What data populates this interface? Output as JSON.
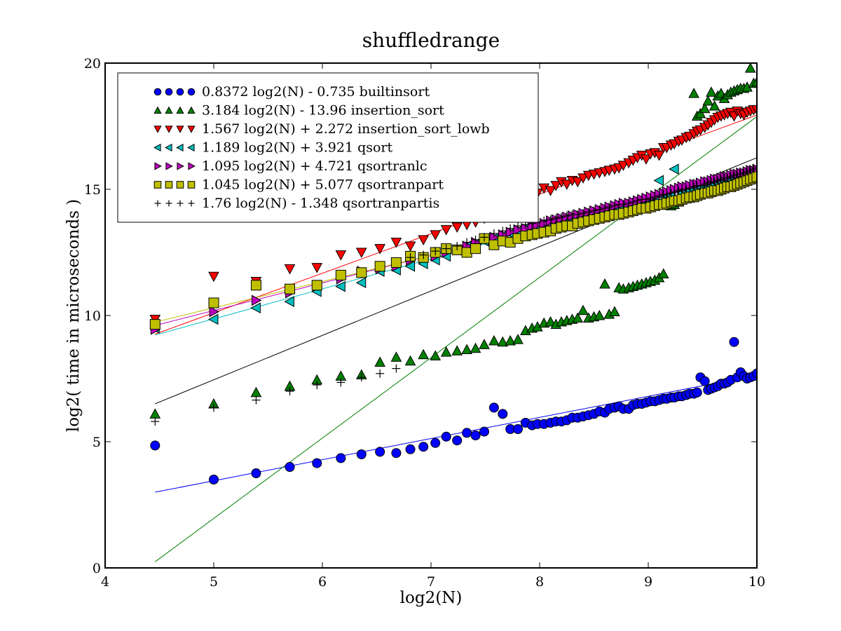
{
  "chart_data": {
    "type": "scatter",
    "title": "shuffledrange",
    "xlabel": "log2(N)",
    "ylabel": "log2( time in microseconds )",
    "xlim": [
      4,
      10
    ],
    "ylim": [
      0,
      20
    ],
    "xticks": [
      "4",
      "5",
      "6",
      "7",
      "8",
      "9",
      "10"
    ],
    "yticks": [
      "0",
      "5",
      "10",
      "15",
      "20"
    ],
    "grid": false,
    "legend_position": "top-left",
    "series": [
      {
        "name": "0.8372 log2(N) - 0.735 builtinsort",
        "marker": "circle",
        "color": "#0000ff",
        "fit": {
          "slope": 0.8372,
          "intercept": -0.735,
          "x_range": [
            4.46,
            10.0
          ]
        },
        "x": [
          4.46,
          5.0,
          5.39,
          5.7,
          5.95,
          6.17,
          6.36,
          6.53,
          6.68,
          6.81,
          6.93,
          7.04,
          7.14,
          7.24,
          7.33,
          7.41,
          7.49,
          7.58,
          7.66,
          7.73,
          7.8,
          7.87,
          7.93,
          7.98,
          8.04,
          8.1,
          8.15,
          8.2,
          8.25,
          8.3,
          8.35,
          8.4,
          8.45,
          8.5,
          8.55,
          8.6,
          8.64,
          8.69,
          8.73,
          8.77,
          8.82,
          8.86,
          8.9,
          8.94,
          8.98,
          9.02,
          9.06,
          9.1,
          9.14,
          9.17,
          9.21,
          9.24,
          9.28,
          9.31,
          9.35,
          9.38,
          9.42,
          9.45,
          9.48,
          9.52,
          9.55,
          9.58,
          9.61,
          9.64,
          9.67,
          9.7,
          9.73,
          9.76,
          9.79,
          9.82,
          9.85,
          9.88,
          9.91,
          9.94,
          9.97,
          10.0
        ],
        "y": [
          4.85,
          3.5,
          3.75,
          4.0,
          4.15,
          4.35,
          4.5,
          4.6,
          4.55,
          4.7,
          4.8,
          4.95,
          5.2,
          5.05,
          5.35,
          5.25,
          5.4,
          6.35,
          6.1,
          5.5,
          5.5,
          5.75,
          5.65,
          5.7,
          5.7,
          5.75,
          5.8,
          5.8,
          5.85,
          5.95,
          5.95,
          6.0,
          6.05,
          6.1,
          6.2,
          6.15,
          6.3,
          6.35,
          6.4,
          6.3,
          6.3,
          6.45,
          6.5,
          6.5,
          6.55,
          6.6,
          6.6,
          6.65,
          6.7,
          6.7,
          6.75,
          6.75,
          6.8,
          6.8,
          6.85,
          6.9,
          6.9,
          6.95,
          7.55,
          7.4,
          7.05,
          7.1,
          7.15,
          7.2,
          7.3,
          7.3,
          7.35,
          7.45,
          8.95,
          7.55,
          7.75,
          7.6,
          7.5,
          7.55,
          7.6,
          7.7
        ]
      },
      {
        "name": "3.184 log2(N) - 13.96 insertion_sort",
        "marker": "triangle-up",
        "color": "#008000",
        "fit": {
          "slope": 3.184,
          "intercept": -13.96,
          "x_range": [
            4.46,
            10.0
          ]
        },
        "x": [
          4.46,
          5.0,
          5.39,
          5.7,
          5.95,
          6.17,
          6.36,
          6.53,
          6.68,
          6.81,
          6.93,
          7.04,
          7.14,
          7.24,
          7.33,
          7.41,
          7.49,
          7.58,
          7.66,
          7.73,
          7.8,
          7.87,
          7.93,
          7.98,
          8.04,
          8.1,
          8.15,
          8.2,
          8.25,
          8.3,
          8.35,
          8.4,
          8.45,
          8.5,
          8.55,
          8.6,
          8.64,
          8.69,
          8.73,
          8.77,
          8.82,
          8.86,
          8.9,
          8.94,
          8.98,
          9.02,
          9.06,
          9.1,
          9.14,
          9.17,
          9.21,
          9.24,
          9.28,
          9.31,
          9.35,
          9.38,
          9.42,
          9.45,
          9.48,
          9.52,
          9.55,
          9.58,
          9.61,
          9.64,
          9.67,
          9.7,
          9.73,
          9.76,
          9.79,
          9.82,
          9.85,
          9.88,
          9.91,
          9.94,
          9.97,
          10.0
        ],
        "y": [
          6.1,
          6.5,
          6.95,
          7.2,
          7.45,
          7.6,
          7.65,
          8.15,
          8.35,
          8.2,
          8.45,
          8.4,
          8.55,
          8.6,
          8.65,
          8.7,
          8.85,
          9.0,
          8.95,
          9.0,
          9.05,
          9.4,
          9.5,
          9.55,
          9.7,
          9.75,
          9.65,
          9.75,
          9.8,
          9.85,
          9.9,
          10.2,
          9.9,
          9.95,
          10.0,
          11.25,
          10.05,
          10.15,
          11.1,
          11.05,
          11.1,
          11.15,
          11.2,
          11.25,
          11.3,
          11.35,
          11.4,
          11.5,
          11.65,
          14.5,
          14.35,
          14.4,
          14.5,
          14.6,
          14.7,
          14.65,
          18.8,
          17.9,
          18.0,
          18.2,
          18.5,
          18.85,
          18.3,
          18.7,
          18.8,
          18.6,
          18.75,
          18.85,
          18.9,
          18.95,
          19.0,
          19.0,
          19.05,
          19.8,
          19.2,
          19.25
        ]
      },
      {
        "name": "1.567 log2(N) + 2.272 insertion_sort_lowb",
        "marker": "triangle-down",
        "color": "#ff0000",
        "fit": {
          "slope": 1.567,
          "intercept": 2.272,
          "x_range": [
            4.46,
            10.0
          ]
        },
        "x": [
          4.46,
          5.0,
          5.39,
          5.7,
          5.95,
          6.17,
          6.36,
          6.53,
          6.68,
          6.81,
          6.93,
          7.04,
          7.14,
          7.24,
          7.33,
          7.41,
          7.49,
          7.58,
          7.66,
          7.73,
          7.8,
          7.87,
          7.93,
          7.98,
          8.04,
          8.1,
          8.15,
          8.2,
          8.25,
          8.3,
          8.35,
          8.4,
          8.45,
          8.5,
          8.55,
          8.6,
          8.64,
          8.69,
          8.73,
          8.77,
          8.82,
          8.86,
          8.9,
          8.94,
          8.98,
          9.02,
          9.06,
          9.1,
          9.14,
          9.17,
          9.21,
          9.24,
          9.28,
          9.31,
          9.35,
          9.38,
          9.42,
          9.45,
          9.48,
          9.52,
          9.55,
          9.58,
          9.61,
          9.64,
          9.67,
          9.7,
          9.73,
          9.76,
          9.79,
          9.82,
          9.85,
          9.88,
          9.91,
          9.94,
          9.97,
          10.0
        ],
        "y": [
          9.85,
          11.55,
          11.35,
          11.85,
          11.9,
          12.4,
          12.5,
          12.65,
          12.9,
          12.75,
          13.0,
          13.2,
          13.4,
          13.5,
          13.6,
          13.7,
          13.85,
          14.25,
          14.35,
          14.45,
          14.6,
          14.8,
          14.9,
          14.85,
          15.05,
          14.95,
          15.15,
          15.3,
          15.2,
          15.35,
          15.3,
          15.45,
          15.55,
          15.6,
          15.65,
          15.7,
          15.75,
          15.8,
          15.85,
          15.95,
          16.05,
          16.15,
          16.25,
          16.35,
          16.2,
          16.4,
          16.45,
          16.35,
          16.65,
          16.65,
          16.75,
          16.8,
          16.9,
          16.95,
          17.05,
          17.1,
          17.2,
          17.3,
          17.35,
          17.45,
          17.55,
          17.65,
          17.75,
          17.85,
          17.9,
          17.95,
          18.0,
          18.05,
          17.9,
          18.1,
          18.0,
          17.95,
          18.05,
          18.1,
          18.15,
          18.15
        ]
      },
      {
        "name": "1.189 log2(N) + 3.921 qsort",
        "marker": "triangle-left",
        "color": "#00bfbf",
        "fit": {
          "slope": 1.189,
          "intercept": 3.921,
          "x_range": [
            4.46,
            10.0
          ]
        },
        "x": [
          4.46,
          5.0,
          5.39,
          5.7,
          5.95,
          6.17,
          6.36,
          6.53,
          6.68,
          6.81,
          6.93,
          7.04,
          7.14,
          7.24,
          7.33,
          7.41,
          7.49,
          7.58,
          7.66,
          7.73,
          7.8,
          7.87,
          7.93,
          7.98,
          8.04,
          8.1,
          8.15,
          8.2,
          8.25,
          8.3,
          8.35,
          8.4,
          8.45,
          8.5,
          8.55,
          8.6,
          8.64,
          8.69,
          8.73,
          8.77,
          8.82,
          8.86,
          8.9,
          8.94,
          8.98,
          9.02,
          9.06,
          9.1,
          9.14,
          9.17,
          9.21,
          9.24,
          9.28,
          9.31,
          9.35,
          9.38,
          9.42,
          9.45,
          9.48,
          9.52,
          9.55,
          9.58,
          9.61,
          9.64,
          9.67,
          9.7,
          9.73,
          9.76,
          9.79,
          9.82,
          9.85,
          9.88,
          9.91,
          9.94,
          9.97,
          10.0
        ],
        "y": [
          9.5,
          9.85,
          10.3,
          10.55,
          10.95,
          11.15,
          11.3,
          11.75,
          11.8,
          11.95,
          12.05,
          12.2,
          12.35,
          12.6,
          12.75,
          12.85,
          12.95,
          13.05,
          13.15,
          13.25,
          13.35,
          13.45,
          13.5,
          13.55,
          13.65,
          13.7,
          13.75,
          13.8,
          13.85,
          13.9,
          13.95,
          14.0,
          14.05,
          14.1,
          14.15,
          14.2,
          14.25,
          14.3,
          14.35,
          14.4,
          14.45,
          14.5,
          14.5,
          14.5,
          14.55,
          14.6,
          14.65,
          15.35,
          14.7,
          14.75,
          14.75,
          15.8,
          15.0,
          14.85,
          14.9,
          14.95,
          15.0,
          15.05,
          15.1,
          15.15,
          15.2,
          15.25,
          15.3,
          15.35,
          15.4,
          15.45,
          15.45,
          15.5,
          15.55,
          15.6,
          15.6,
          15.65,
          15.7,
          15.7,
          15.75,
          15.8
        ]
      },
      {
        "name": "1.095 log2(N) + 4.721 qsortranlc",
        "marker": "triangle-right",
        "color": "#bf00bf",
        "fit": {
          "slope": 1.095,
          "intercept": 4.721,
          "x_range": [
            4.46,
            10.0
          ]
        },
        "x": [
          4.46,
          5.0,
          5.39,
          5.7,
          5.95,
          6.17,
          6.36,
          6.53,
          6.68,
          6.81,
          6.93,
          7.04,
          7.14,
          7.24,
          7.33,
          7.41,
          7.49,
          7.58,
          7.66,
          7.73,
          7.8,
          7.87,
          7.93,
          7.98,
          8.04,
          8.1,
          8.15,
          8.2,
          8.25,
          8.3,
          8.35,
          8.4,
          8.45,
          8.5,
          8.55,
          8.6,
          8.64,
          8.69,
          8.73,
          8.77,
          8.82,
          8.86,
          8.9,
          8.94,
          8.98,
          9.02,
          9.06,
          9.1,
          9.14,
          9.17,
          9.21,
          9.24,
          9.28,
          9.31,
          9.35,
          9.38,
          9.42,
          9.45,
          9.48,
          9.52,
          9.55,
          9.58,
          9.61,
          9.64,
          9.67,
          9.7,
          9.73,
          9.76,
          9.79,
          9.82,
          9.85,
          9.88,
          9.91,
          9.94,
          9.97,
          10.0
        ],
        "y": [
          9.45,
          10.15,
          10.6,
          10.9,
          11.15,
          11.45,
          11.75,
          11.85,
          11.95,
          12.2,
          12.3,
          12.35,
          12.5,
          12.6,
          12.75,
          12.9,
          13.0,
          13.1,
          13.2,
          13.3,
          13.4,
          13.45,
          13.55,
          13.6,
          13.65,
          13.75,
          13.8,
          13.85,
          13.9,
          13.95,
          14.0,
          14.05,
          14.1,
          14.15,
          14.2,
          14.25,
          14.3,
          14.35,
          14.4,
          14.45,
          14.45,
          14.5,
          14.55,
          14.6,
          14.65,
          14.7,
          14.75,
          14.8,
          14.85,
          14.9,
          14.95,
          15.0,
          15.05,
          15.1,
          15.1,
          15.15,
          15.2,
          15.2,
          15.25,
          15.3,
          15.3,
          15.35,
          15.4,
          15.4,
          15.45,
          15.5,
          15.5,
          15.55,
          15.6,
          15.6,
          15.65,
          15.65,
          15.7,
          15.75,
          15.75,
          15.8
        ]
      },
      {
        "name": "1.045 log2(N) + 5.077 qsortranpart",
        "marker": "square",
        "color": "#bfbf00",
        "fit": {
          "slope": 1.045,
          "intercept": 5.077,
          "x_range": [
            4.46,
            10.0
          ]
        },
        "x": [
          4.46,
          5.0,
          5.39,
          5.7,
          5.95,
          6.17,
          6.36,
          6.53,
          6.68,
          6.81,
          6.93,
          7.04,
          7.14,
          7.24,
          7.33,
          7.41,
          7.49,
          7.58,
          7.66,
          7.73,
          7.8,
          7.87,
          7.93,
          7.98,
          8.04,
          8.1,
          8.15,
          8.2,
          8.25,
          8.3,
          8.35,
          8.4,
          8.45,
          8.5,
          8.55,
          8.6,
          8.64,
          8.69,
          8.73,
          8.77,
          8.82,
          8.86,
          8.9,
          8.94,
          8.98,
          9.02,
          9.06,
          9.1,
          9.14,
          9.17,
          9.21,
          9.24,
          9.28,
          9.31,
          9.35,
          9.38,
          9.42,
          9.45,
          9.48,
          9.52,
          9.55,
          9.58,
          9.61,
          9.64,
          9.67,
          9.7,
          9.73,
          9.76,
          9.79,
          9.82,
          9.85,
          9.88,
          9.91,
          9.94,
          9.97,
          10.0
        ],
        "y": [
          9.65,
          10.5,
          11.2,
          11.05,
          11.2,
          11.6,
          11.7,
          11.95,
          12.1,
          12.35,
          12.3,
          12.5,
          12.65,
          12.6,
          12.5,
          12.65,
          13.05,
          12.8,
          12.95,
          12.9,
          13.05,
          13.15,
          13.2,
          13.25,
          13.3,
          13.35,
          13.45,
          13.5,
          13.55,
          13.55,
          13.65,
          13.7,
          13.75,
          13.8,
          13.85,
          13.9,
          13.95,
          14.0,
          14.0,
          14.05,
          14.1,
          14.15,
          14.2,
          14.25,
          14.25,
          14.3,
          14.35,
          14.4,
          14.4,
          14.45,
          14.5,
          14.55,
          14.55,
          14.6,
          14.65,
          14.7,
          14.7,
          14.75,
          14.8,
          14.85,
          14.85,
          14.9,
          14.95,
          14.95,
          15.0,
          15.05,
          15.1,
          15.1,
          15.15,
          15.2,
          15.25,
          15.3,
          15.35,
          15.4,
          15.45,
          15.5
        ]
      },
      {
        "name": "1.76 log2(N) - 1.348 qsortranpartis",
        "marker": "plus",
        "color": "#000000",
        "fit": {
          "slope": 1.76,
          "intercept": -1.348,
          "x_range": [
            4.46,
            10.0
          ]
        },
        "x": [
          4.46,
          5.0,
          5.39,
          5.7,
          5.95,
          6.17,
          6.36,
          6.53,
          6.68,
          6.81,
          6.93,
          7.04,
          7.14,
          7.24,
          7.33,
          7.41,
          7.49,
          7.58,
          7.66,
          7.73,
          7.8,
          7.87,
          7.93,
          7.98,
          8.04,
          8.1,
          8.15,
          8.2,
          8.25,
          8.3,
          8.35,
          8.4,
          8.45,
          8.5,
          8.55,
          8.6,
          8.64,
          8.69,
          8.73,
          8.77,
          8.82,
          8.86,
          8.9,
          8.94,
          8.98,
          9.02,
          9.06,
          9.1,
          9.14,
          9.17,
          9.21,
          9.24,
          9.28,
          9.31,
          9.35,
          9.38,
          9.42,
          9.45,
          9.48,
          9.52,
          9.55,
          9.58,
          9.61,
          9.64,
          9.67,
          9.7,
          9.73,
          9.76,
          9.79,
          9.82,
          9.85,
          9.88,
          9.91,
          9.94,
          9.97,
          10.0
        ],
        "y": [
          5.8,
          6.35,
          6.65,
          7.0,
          7.25,
          7.35,
          7.55,
          7.7,
          7.9,
          12.3,
          12.4,
          12.55,
          12.65,
          12.75,
          12.9,
          13.0,
          13.1,
          13.25,
          13.35,
          13.45,
          13.55,
          13.6,
          13.65,
          13.7,
          13.75,
          13.8,
          13.85,
          13.9,
          13.95,
          14.0,
          14.0,
          14.05,
          14.1,
          14.15,
          14.2,
          14.25,
          14.3,
          14.35,
          14.4,
          14.4,
          14.45,
          14.5,
          14.55,
          14.6,
          14.6,
          14.65,
          14.7,
          14.75,
          14.8,
          14.8,
          14.85,
          14.9,
          14.95,
          15.0,
          15.0,
          15.05,
          15.1,
          15.15,
          15.15,
          15.2,
          15.25,
          15.3,
          15.3,
          15.35,
          15.4,
          15.45,
          15.45,
          15.5,
          15.55,
          15.6,
          15.6,
          15.65,
          15.7,
          15.75,
          15.8,
          15.85
        ]
      }
    ]
  }
}
